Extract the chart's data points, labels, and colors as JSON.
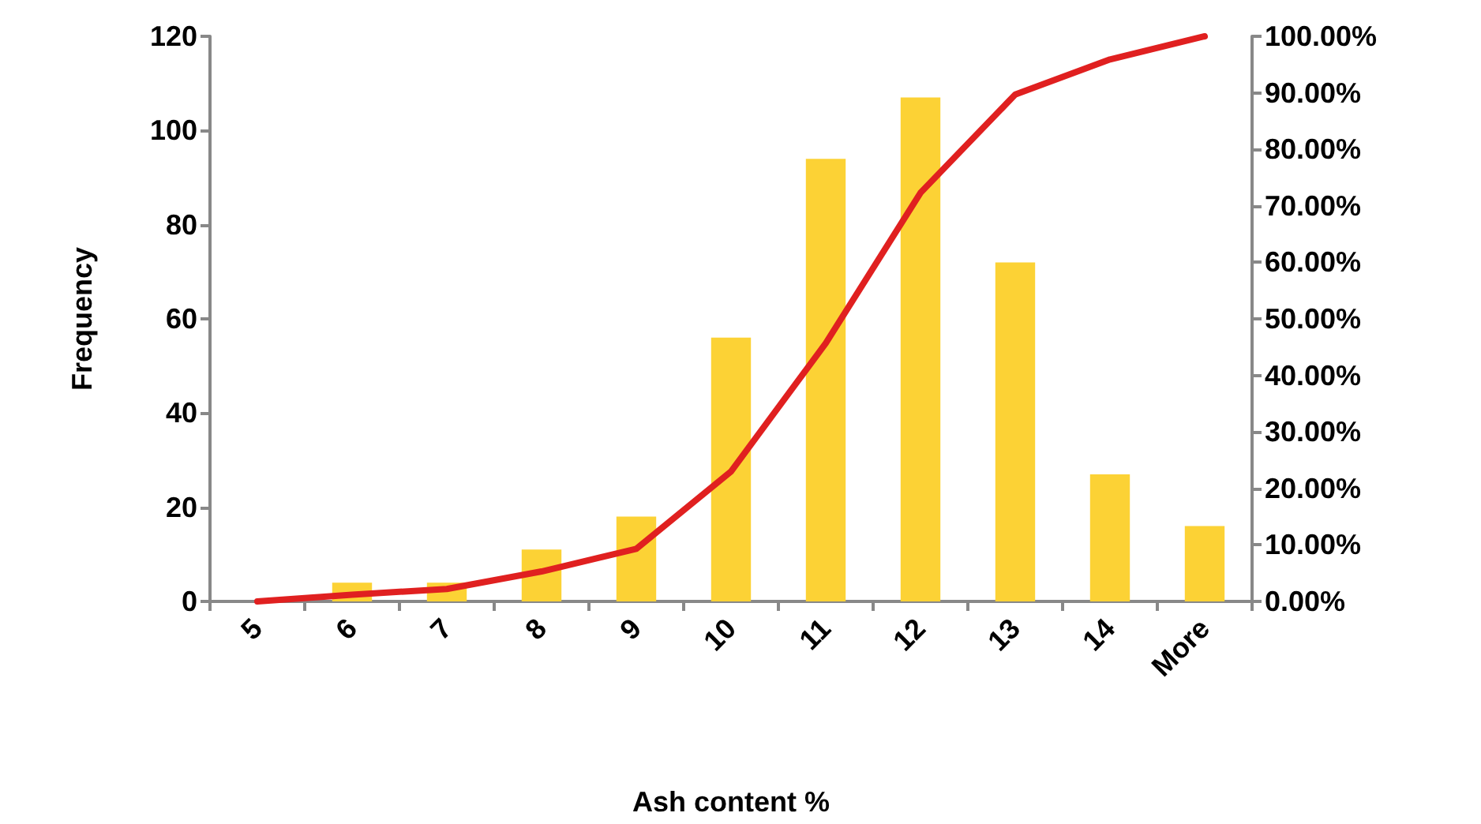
{
  "chart_data": {
    "type": "bar",
    "xlabel": "Ash content %",
    "ylabel": "Frequency",
    "categories": [
      "5",
      "6",
      "7",
      "8",
      "9",
      "10",
      "11",
      "12",
      "13",
      "14",
      "More"
    ],
    "series": [
      {
        "color": "#fcd235",
        "values": [
          0,
          4,
          4,
          11,
          18,
          56,
          94,
          107,
          72,
          27,
          16
        ]
      },
      {
        "type": "line",
        "axis": "y2",
        "color": "#e02020",
        "values": [
          0,
          1.2,
          2.2,
          5.3,
          9.3,
          23,
          45.7,
          72.3,
          89.7,
          95.9,
          100
        ]
      }
    ],
    "ylim": [
      0,
      120
    ],
    "yticks": [
      0,
      20,
      40,
      60,
      80,
      100,
      120
    ],
    "y2lim": [
      0,
      100
    ],
    "y2ticks": [
      {
        "value": 0,
        "label": "0.00%"
      },
      {
        "value": 10,
        "label": "10.00%"
      },
      {
        "value": 20,
        "label": "20.00%"
      },
      {
        "value": 30,
        "label": "30.00%"
      },
      {
        "value": 40,
        "label": "40.00%"
      },
      {
        "value": 50,
        "label": "50.00%"
      },
      {
        "value": 60,
        "label": "60.00%"
      },
      {
        "value": 70,
        "label": "70.00%"
      },
      {
        "value": 80,
        "label": "80.00%"
      },
      {
        "value": 90,
        "label": "90.00%"
      },
      {
        "value": 100,
        "label": "100.00%"
      }
    ],
    "grid": false,
    "marker": "none",
    "line_style": "solid"
  }
}
